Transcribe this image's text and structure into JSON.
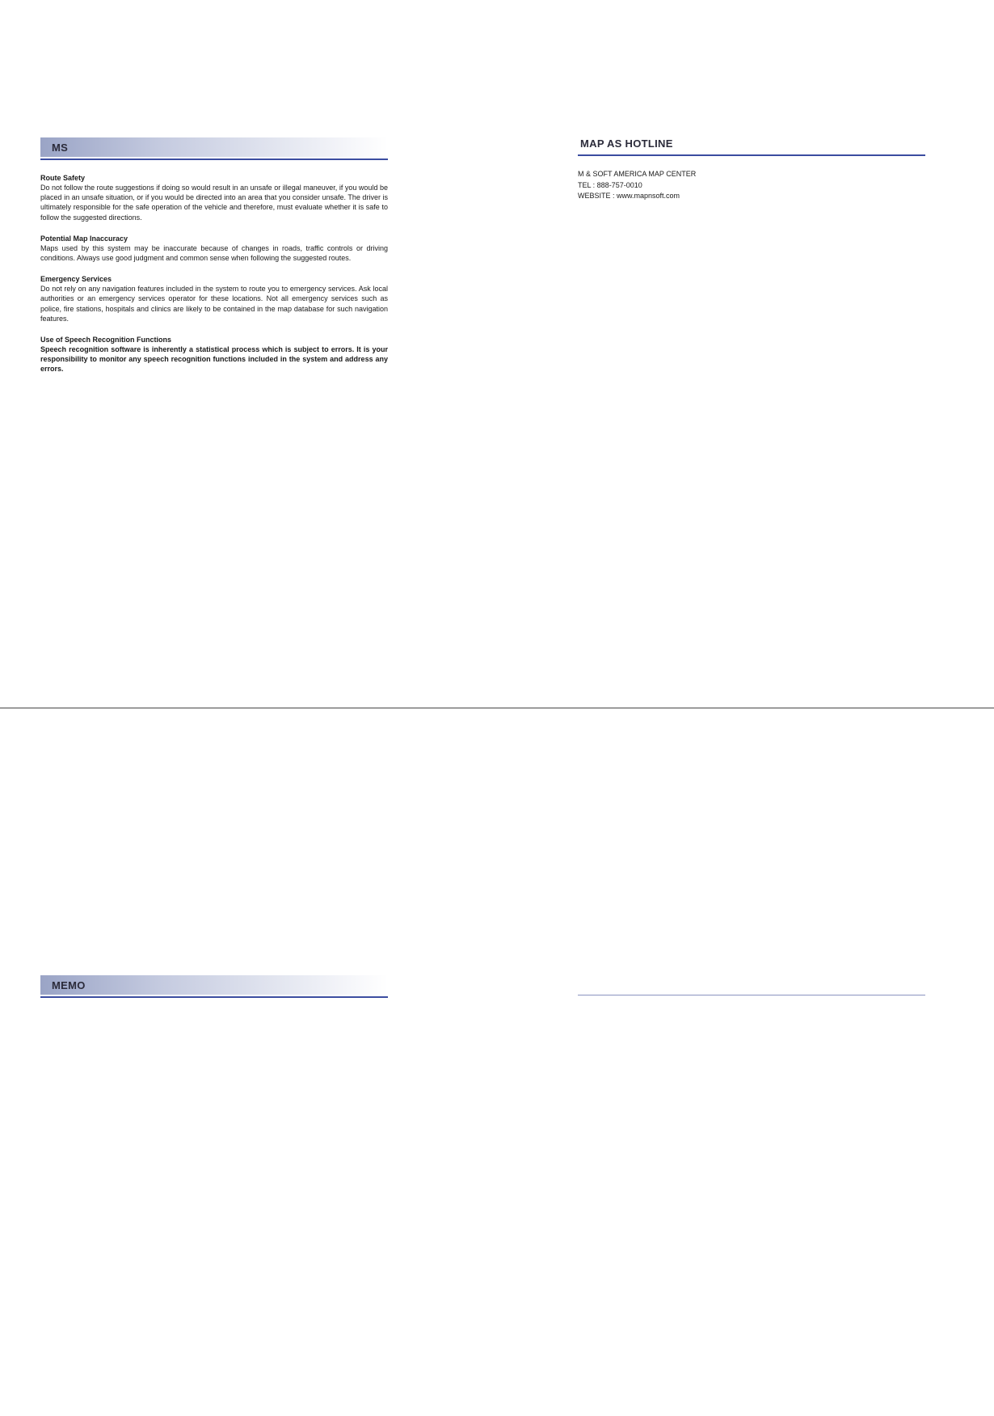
{
  "top": {
    "left": {
      "header": "MS",
      "sections": [
        {
          "title": "Route Safety",
          "body": "Do not follow the route suggestions if doing so would result in an unsafe or illegal maneuver, if you would be placed in an unsafe situation, or if you would be directed into an area that you consider unsafe.  The driver is ultimately responsible for the safe operation of the vehicle and therefore, must evaluate whether it is safe to follow the suggested directions.",
          "bold": false
        },
        {
          "title": "Potential Map Inaccuracy",
          "body": "Maps used by this system may be inaccurate because of changes in roads, traffic controls or driving conditions.  Always use good judgment and common sense when following the suggested routes.",
          "bold": false
        },
        {
          "title": "Emergency Services",
          "body": "Do not rely on any navigation features included in the system to route you to emergency services.  Ask local authorities or an emergency services operator for these locations.  Not all emergency services such as police, fire stations, hospitals and clinics are likely to be contained in the map database for such navigation features.",
          "bold": false
        },
        {
          "title": "Use of Speech Recognition Functions",
          "body": "Speech recognition software is inherently a statistical process which is subject to errors.  It is your responsibility to monitor any speech recognition functions included in the system and address any errors.",
          "bold": true
        }
      ]
    },
    "right": {
      "header": "MAP AS HOTLINE",
      "contact": {
        "line1": "M & SOFT AMERICA MAP CENTER",
        "line2": "TEL : 888-757-0010",
        "line3": "WEBSITE : www.mapnsoft.com"
      }
    }
  },
  "bottom": {
    "left": {
      "header": "MEMO"
    }
  },
  "colors": {
    "underline": "#3b4da0",
    "gradient_start": "#9aa4c6",
    "gradient_end": "#ffffff",
    "text": "#1a1a1a"
  }
}
